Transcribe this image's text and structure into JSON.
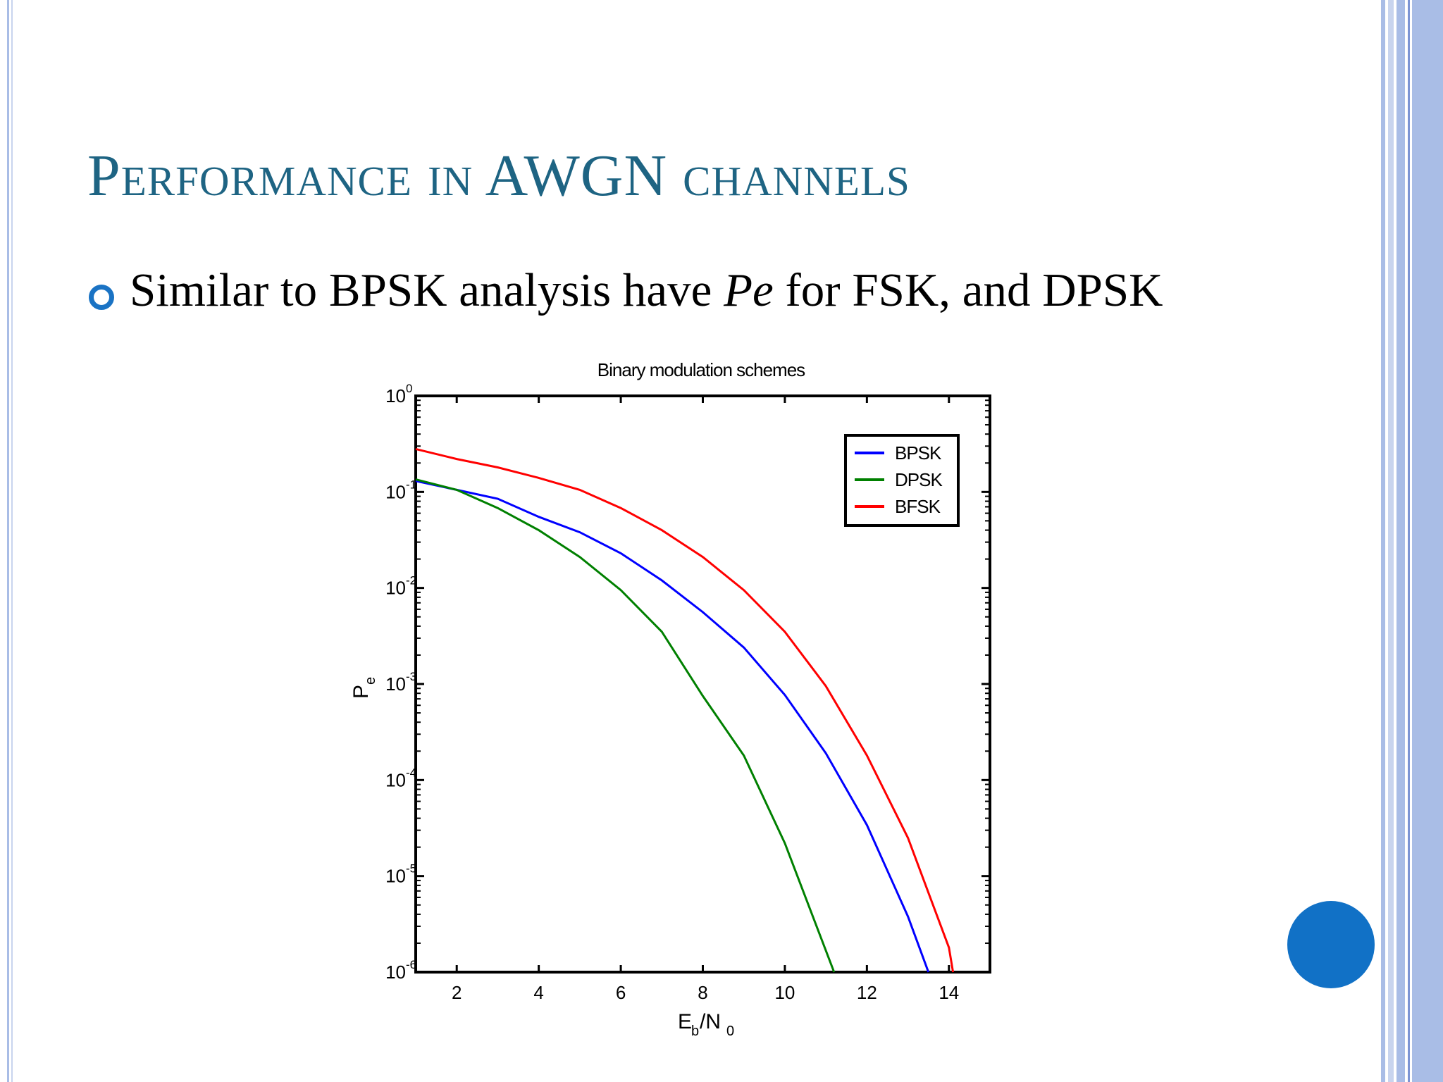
{
  "slide": {
    "title": "Performance in AWGN channels",
    "bullet": {
      "pre": "Similar to BPSK analysis have ",
      "emph": "Pe",
      "post": " for FSK, and DPSK"
    }
  },
  "colors": {
    "title": "#1e6483",
    "bullet": "#1a73c4",
    "accent_dot": "#1171c6",
    "side_bars": "#a9bde6"
  },
  "chart_data": {
    "type": "line",
    "title": "Binary modulation schemes",
    "xlabel": "E_b/N_0",
    "ylabel": "P_e",
    "xscale": "linear",
    "yscale": "log",
    "xlim": [
      1,
      15
    ],
    "ylim": [
      1e-06,
      1
    ],
    "xticks": [
      2,
      4,
      6,
      8,
      10,
      12,
      14
    ],
    "yticks": [
      {
        "exp": "0",
        "value": 1
      },
      {
        "exp": "-1",
        "value": 0.1
      },
      {
        "exp": "-2",
        "value": 0.01
      },
      {
        "exp": "-3",
        "value": 0.001
      },
      {
        "exp": "-4",
        "value": 0.0001
      },
      {
        "exp": "-5",
        "value": 1e-05
      },
      {
        "exp": "-6",
        "value": 1e-06
      }
    ],
    "grid": false,
    "legend": "top-right",
    "series": [
      {
        "name": "BPSK",
        "color": "#0000ff",
        "x": [
          1,
          2,
          3,
          4,
          5,
          6,
          7,
          8,
          9,
          10,
          11,
          12,
          13,
          13.5
        ],
        "y": [
          0.13,
          0.105,
          0.085,
          0.055,
          0.038,
          0.023,
          0.012,
          0.0056,
          0.0024,
          0.00077,
          0.00019,
          3.4e-05,
          3.8e-06,
          1e-06
        ]
      },
      {
        "name": "DPSK",
        "color": "#008000",
        "x": [
          1,
          2,
          3,
          4,
          5,
          6,
          7,
          8,
          9,
          10,
          11.2
        ],
        "y": [
          0.135,
          0.105,
          0.068,
          0.04,
          0.021,
          0.0095,
          0.0035,
          0.00075,
          0.00018,
          2.2e-05,
          1e-06
        ]
      },
      {
        "name": "BFSK",
        "color": "#ff0000",
        "x": [
          1,
          2,
          3,
          4,
          5,
          6,
          7,
          8,
          9,
          10,
          11,
          12,
          13,
          14,
          14.1
        ],
        "y": [
          0.28,
          0.22,
          0.18,
          0.14,
          0.105,
          0.068,
          0.04,
          0.021,
          0.0095,
          0.0035,
          0.00095,
          0.00018,
          2.5e-05,
          1.8e-06,
          1e-06
        ]
      }
    ]
  }
}
